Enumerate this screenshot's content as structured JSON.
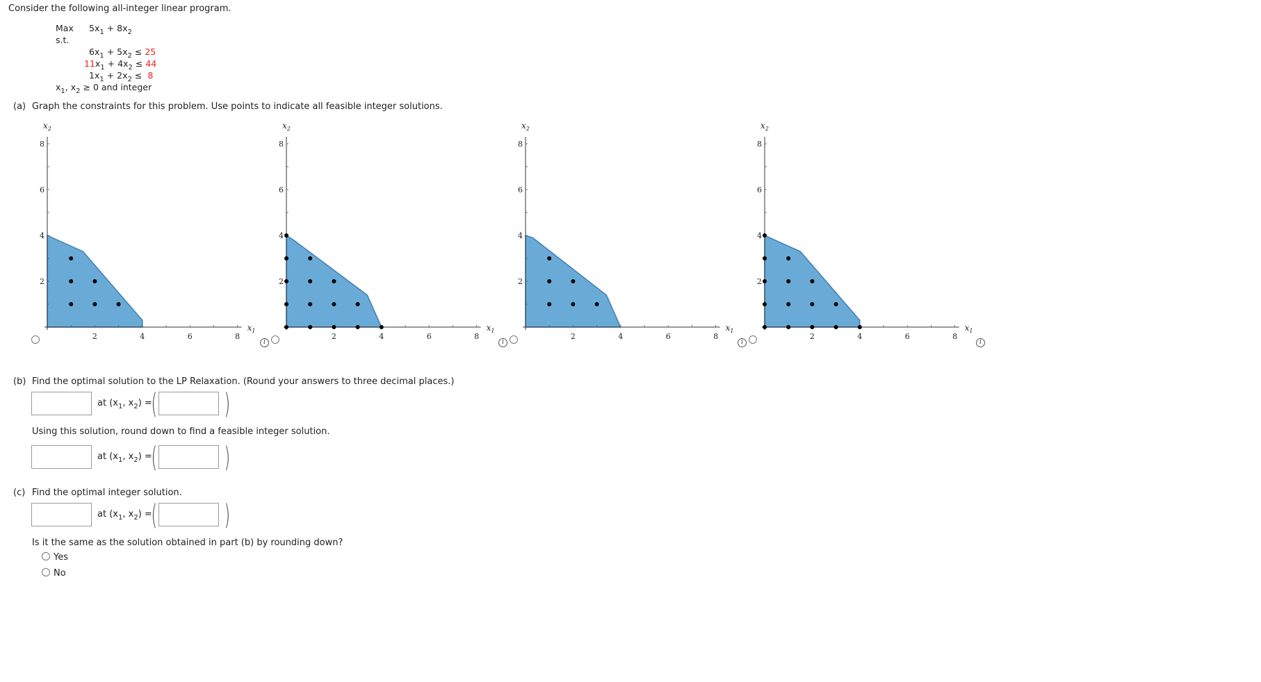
{
  "intro": "Consider the following all-integer linear program.",
  "lp": {
    "max_label": "Max",
    "objective": {
      "c1": "5",
      "c2": "8"
    },
    "st_label": "s.t.",
    "constraints": [
      {
        "a1": "6",
        "a2": "5",
        "rel": "≤",
        "rhs": "25",
        "a1_red": false,
        "rhs_red": true
      },
      {
        "a1": "11",
        "a2": "4",
        "rel": "≤",
        "rhs": "44",
        "a1_red": true,
        "rhs_red": true
      },
      {
        "a1": "1",
        "a2": "2",
        "rel": "≤",
        "rhs": "8",
        "a1_red": false,
        "rhs_red": true
      }
    ],
    "nonneg": "≥ 0 and integer",
    "x1": "x",
    "x2": "x",
    "sub1": "1",
    "sub2": "2"
  },
  "part_a": {
    "label": "(a)",
    "text": "Graph the constraints for this problem. Use points to indicate all feasible integer solutions."
  },
  "graphs": {
    "axis_label_x": "x",
    "axis_label_y": "x",
    "sub_x": "1",
    "sub_y": "2",
    "x_ticks": [
      "2",
      "4",
      "6",
      "8"
    ],
    "y_ticks": [
      "2",
      "4",
      "6",
      "8"
    ],
    "xlim": [
      0,
      8
    ],
    "ylim": [
      0,
      8
    ],
    "fill_color": "#6aaad6",
    "edge_color": "#3f7fb8",
    "options": [
      {
        "polygon": [
          [
            0,
            0
          ],
          [
            0,
            4
          ],
          [
            1.5,
            3.3
          ],
          [
            4,
            0.3
          ],
          [
            4,
            0
          ]
        ],
        "points": [
          [
            1,
            1
          ],
          [
            1,
            2
          ],
          [
            1,
            3
          ],
          [
            2,
            1
          ],
          [
            2,
            2
          ],
          [
            3,
            1
          ]
        ]
      },
      {
        "polygon": [
          [
            0,
            0
          ],
          [
            0,
            4
          ],
          [
            0.3,
            3.8
          ],
          [
            3.4,
            1.4
          ],
          [
            4,
            0
          ]
        ],
        "points": [
          [
            0,
            0
          ],
          [
            0,
            1
          ],
          [
            0,
            2
          ],
          [
            0,
            3
          ],
          [
            0,
            4
          ],
          [
            1,
            0
          ],
          [
            1,
            1
          ],
          [
            1,
            2
          ],
          [
            1,
            3
          ],
          [
            2,
            0
          ],
          [
            2,
            1
          ],
          [
            2,
            2
          ],
          [
            3,
            0
          ],
          [
            3,
            1
          ],
          [
            4,
            0
          ]
        ]
      },
      {
        "polygon": [
          [
            0,
            0
          ],
          [
            0,
            4
          ],
          [
            0.3,
            3.9
          ],
          [
            3.4,
            1.4
          ],
          [
            4,
            0
          ]
        ],
        "points": [
          [
            1,
            1
          ],
          [
            1,
            2
          ],
          [
            1,
            3
          ],
          [
            2,
            1
          ],
          [
            2,
            2
          ],
          [
            3,
            1
          ]
        ]
      },
      {
        "polygon": [
          [
            0,
            0
          ],
          [
            0,
            4
          ],
          [
            1.5,
            3.3
          ],
          [
            4,
            0.3
          ],
          [
            4,
            0
          ]
        ],
        "points": [
          [
            0,
            0
          ],
          [
            0,
            1
          ],
          [
            0,
            2
          ],
          [
            0,
            3
          ],
          [
            0,
            4
          ],
          [
            1,
            0
          ],
          [
            1,
            1
          ],
          [
            1,
            2
          ],
          [
            1,
            3
          ],
          [
            2,
            0
          ],
          [
            2,
            1
          ],
          [
            2,
            2
          ],
          [
            3,
            0
          ],
          [
            3,
            1
          ],
          [
            4,
            0
          ]
        ]
      }
    ]
  },
  "part_b": {
    "label": "(b)",
    "text": "Find the optimal solution to the LP Relaxation. (Round your answers to three decimal places.)",
    "round_text": "Using this solution, round down to find a feasible integer solution."
  },
  "at_label": "at (x",
  "at_comma": ", x",
  "at_close": ") =",
  "part_c": {
    "label": "(c)",
    "text": "Find the optimal integer solution.",
    "question": "Is it the same as the solution obtained in part (b) by rounding down?",
    "options": [
      "Yes",
      "No"
    ]
  }
}
